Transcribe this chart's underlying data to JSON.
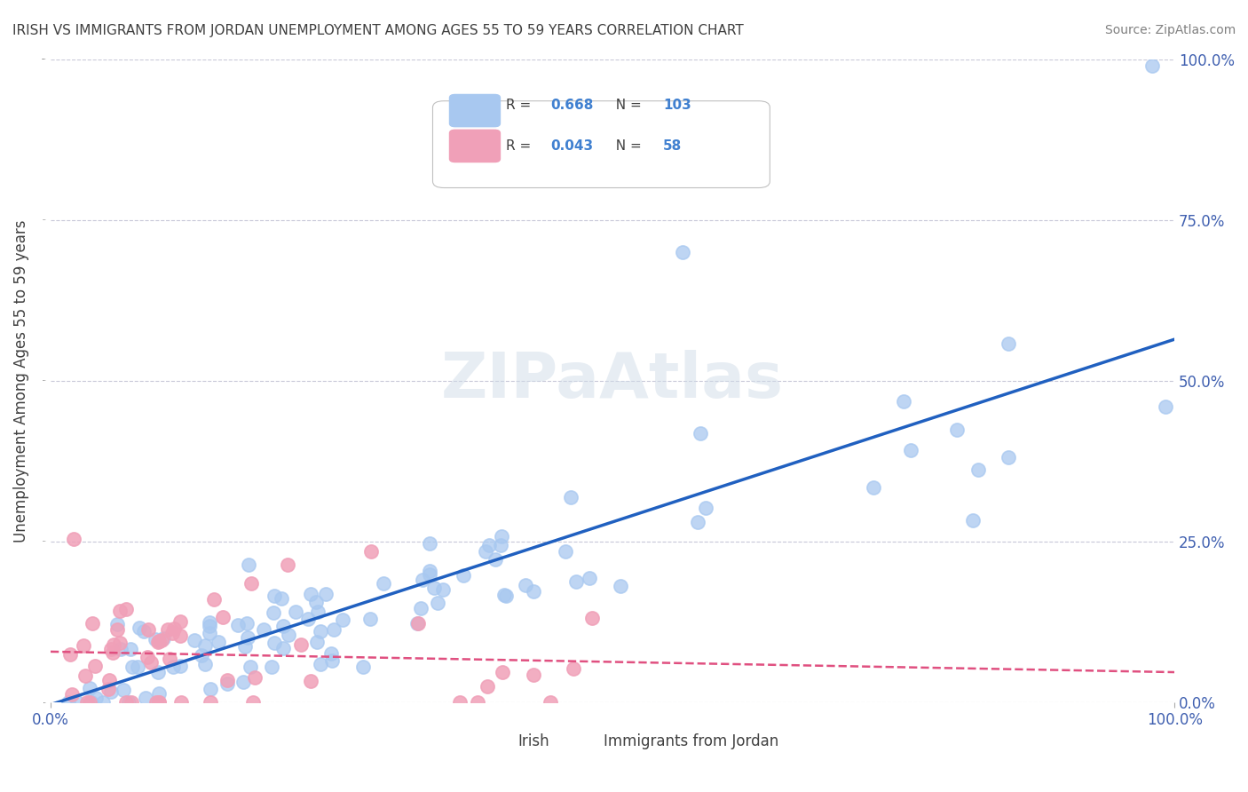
{
  "title": "IRISH VS IMMIGRANTS FROM JORDAN UNEMPLOYMENT AMONG AGES 55 TO 59 YEARS CORRELATION CHART",
  "source": "Source: ZipAtlas.com",
  "xlabel": "",
  "ylabel": "Unemployment Among Ages 55 to 59 years",
  "xlim": [
    0,
    1
  ],
  "ylim": [
    0,
    1
  ],
  "xtick_labels": [
    "0.0%",
    "100.0%"
  ],
  "ytick_labels": [
    "0.0%",
    "25.0%",
    "50.0%",
    "75.0%",
    "100.0%"
  ],
  "ytick_vals": [
    0.0,
    0.25,
    0.5,
    0.75,
    1.0
  ],
  "irish_R": 0.668,
  "irish_N": 103,
  "jordan_R": 0.043,
  "jordan_N": 58,
  "irish_color": "#a8c8f0",
  "irish_line_color": "#2060c0",
  "jordan_color": "#f0a0b8",
  "jordan_line_color": "#e05080",
  "background_color": "#ffffff",
  "grid_color": "#c8c8d8",
  "title_color": "#404040",
  "legend_R_color": "#4080d0",
  "legend_N_color": "#e05080",
  "watermark": "ZIPaAtlas",
  "irish_seed": 42,
  "jordan_seed": 99
}
